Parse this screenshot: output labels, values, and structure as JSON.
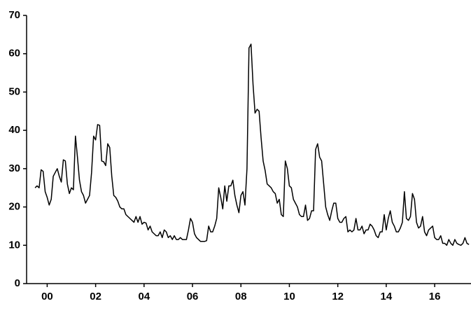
{
  "chart_data": {
    "type": "line",
    "x": [
      2000,
      2000.083,
      2000.167,
      2000.25,
      2000.333,
      2000.417,
      2000.5,
      2000.583,
      2000.667,
      2000.75,
      2000.833,
      2000.917,
      2001,
      2001.083,
      2001.167,
      2001.25,
      2001.333,
      2001.417,
      2001.5,
      2001.583,
      2001.667,
      2001.75,
      2001.833,
      2001.917,
      2002,
      2002.083,
      2002.167,
      2002.25,
      2002.333,
      2002.417,
      2002.5,
      2002.583,
      2002.667,
      2002.75,
      2002.833,
      2002.917,
      2003,
      2003.083,
      2003.167,
      2003.25,
      2003.333,
      2003.417,
      2003.5,
      2003.583,
      2003.667,
      2003.75,
      2003.833,
      2003.917,
      2004,
      2004.083,
      2004.167,
      2004.25,
      2004.333,
      2004.417,
      2004.5,
      2004.583,
      2004.667,
      2004.75,
      2004.833,
      2004.917,
      2005,
      2005.083,
      2005.167,
      2005.25,
      2005.333,
      2005.417,
      2005.5,
      2005.583,
      2005.667,
      2005.75,
      2005.833,
      2005.917,
      2006,
      2006.083,
      2006.167,
      2006.25,
      2006.333,
      2006.417,
      2006.5,
      2006.583,
      2006.667,
      2006.75,
      2006.833,
      2006.917,
      2007,
      2007.083,
      2007.167,
      2007.25,
      2007.333,
      2007.417,
      2007.5,
      2007.583,
      2007.667,
      2007.75,
      2007.833,
      2007.917,
      2008,
      2008.083,
      2008.167,
      2008.25,
      2008.333,
      2008.417,
      2008.5,
      2008.583,
      2008.667,
      2008.75,
      2008.833,
      2008.917,
      2009,
      2009.083,
      2009.167,
      2009.25,
      2009.333,
      2009.417,
      2009.5,
      2009.583,
      2009.667,
      2009.75,
      2009.833,
      2009.917,
      2010,
      2010.083,
      2010.167,
      2010.25,
      2010.333,
      2010.417,
      2010.5,
      2010.583,
      2010.667,
      2010.75,
      2010.833,
      2010.917,
      2011,
      2011.083,
      2011.167,
      2011.25,
      2011.333,
      2011.417,
      2011.5,
      2011.583,
      2011.667,
      2011.75,
      2011.833,
      2011.917,
      2012,
      2012.083,
      2012.167,
      2012.25,
      2012.333,
      2012.417,
      2012.5,
      2012.583,
      2012.667,
      2012.75,
      2012.833,
      2012.917,
      2013,
      2013.083,
      2013.167,
      2013.25,
      2013.333,
      2013.417,
      2013.5,
      2013.583,
      2013.667,
      2013.75,
      2013.833,
      2013.917,
      2014,
      2014.083,
      2014.167,
      2014.25,
      2014.333,
      2014.417,
      2014.5,
      2014.583,
      2014.667,
      2014.75,
      2014.833,
      2014.917,
      2015,
      2015.083,
      2015.167,
      2015.25,
      2015.333,
      2015.417,
      2015.5,
      2015.583,
      2015.667,
      2015.75,
      2015.833,
      2015.917,
      2016,
      2016.083,
      2016.167,
      2016.25,
      2016.333,
      2016.417,
      2016.5,
      2016.583,
      2016.667,
      2016.75,
      2016.833,
      2016.917,
      2017,
      2017.083,
      2017.167,
      2017.25,
      2017.333,
      2017.417,
      2017.5,
      2017.583,
      2017.667,
      2017.75,
      2017.833,
      2017.917
    ],
    "series": [
      {
        "color": "#000000",
        "values": [
          25,
          25.5,
          25,
          29.7,
          29.3,
          24,
          22.5,
          20.5,
          22,
          28,
          29,
          30,
          28,
          26.5,
          32.3,
          32,
          26,
          23.5,
          25,
          24.5,
          38.5,
          33,
          27,
          24,
          23,
          21,
          22,
          23,
          29,
          38.5,
          37.5,
          41.5,
          41.3,
          32,
          31.8,
          30.8,
          36.5,
          35.5,
          28,
          23,
          22.5,
          21.5,
          20,
          19.5,
          19.5,
          18,
          17.5,
          17,
          16.5,
          16,
          17.5,
          16,
          17.5,
          15.5,
          16,
          15.8,
          14,
          15,
          13.5,
          13,
          12.5,
          12.5,
          13.5,
          12,
          14,
          13.5,
          12,
          12.5,
          11.5,
          12.5,
          11.5,
          11.5,
          12,
          11.5,
          11.5,
          11.5,
          14,
          17,
          16,
          13,
          12,
          11.5,
          11,
          11,
          11,
          11.2,
          15,
          13.5,
          13.5,
          15,
          17,
          25,
          22.5,
          19.5,
          25.5,
          21.5,
          25.5,
          25.5,
          27,
          23,
          20.5,
          18.5,
          23,
          24,
          20.5,
          30,
          61.5,
          62.5,
          52,
          44.5,
          45.5,
          45,
          38,
          32,
          29.5,
          26,
          25.5,
          25,
          24,
          23.5,
          21,
          22,
          18,
          17.5,
          32,
          30,
          25.5,
          25,
          22,
          21,
          20,
          18,
          17.5,
          17.5,
          20.5,
          16.5,
          17,
          19,
          19,
          35,
          36.5,
          33,
          32,
          26,
          20,
          18,
          16.5,
          19,
          21,
          21,
          17,
          16,
          16,
          17,
          17.5,
          13.5,
          14,
          13.5,
          14,
          17,
          14,
          14,
          15,
          13,
          14,
          14,
          15.5,
          15,
          14,
          12.5,
          12,
          13.5,
          13.5,
          18,
          14,
          17,
          19,
          16,
          15,
          13.5,
          13.5,
          14.5,
          16,
          24,
          17,
          16.5,
          17.5,
          23.5,
          22,
          16,
          14.5,
          15,
          17.5,
          13.5,
          12.5,
          14,
          14.5,
          15,
          12,
          11.5,
          11.5,
          12.5,
          10.5,
          10.5,
          10,
          11.5,
          10.5,
          10,
          11.5,
          10.5,
          10.2,
          10,
          10.5,
          12,
          10.5,
          10.2
        ]
      }
    ],
    "xlim": [
      1999.65,
      2018
    ],
    "xticks": [
      {
        "value": 2000.5,
        "label": "00"
      },
      {
        "value": 2002.5,
        "label": "02"
      },
      {
        "value": 2004.5,
        "label": "04"
      },
      {
        "value": 2006.5,
        "label": "06"
      },
      {
        "value": 2008.5,
        "label": "08"
      },
      {
        "value": 2010.5,
        "label": "10"
      },
      {
        "value": 2012.5,
        "label": "12"
      },
      {
        "value": 2014.5,
        "label": "14"
      },
      {
        "value": 2016.5,
        "label": "16"
      }
    ],
    "ylim": [
      0,
      70
    ],
    "yticks": [
      0,
      10,
      20,
      30,
      40,
      50,
      60,
      70
    ]
  }
}
